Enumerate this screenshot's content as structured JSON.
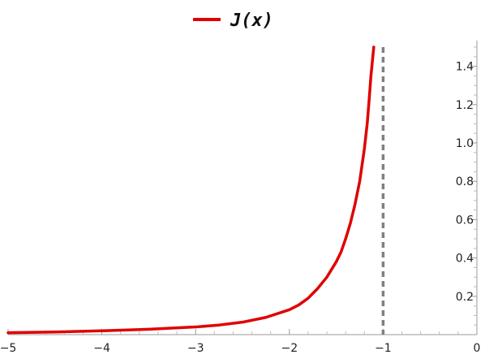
{
  "chart_data": {
    "type": "line",
    "title": "",
    "xlabel": "",
    "ylabel": "",
    "xlim": [
      -5,
      0
    ],
    "ylim": [
      0,
      1.5
    ],
    "x_ticks": [
      -5,
      -4,
      -3,
      -2,
      -1,
      0
    ],
    "x_tick_labels": [
      "−5",
      "−4",
      "−3",
      "−2",
      "−1",
      "0"
    ],
    "y_ticks": [
      0.2,
      0.4,
      0.6,
      0.8,
      1.0,
      1.2,
      1.4
    ],
    "y_tick_labels": [
      "0.2",
      "0.4",
      "0.6",
      "0.8",
      "1.0",
      "1.2",
      "1.4"
    ],
    "grid": false,
    "legend_position": "top-center",
    "series": [
      {
        "name": "J(x)",
        "color": "#e00000",
        "x": [
          -5,
          -4.5,
          -4,
          -3.5,
          -3,
          -2.75,
          -2.5,
          -2.25,
          -2,
          -1.9,
          -1.8,
          -1.7,
          -1.6,
          -1.5,
          -1.45,
          -1.4,
          -1.35,
          -1.3,
          -1.25,
          -1.2,
          -1.17,
          -1.15,
          -1.13,
          -1.1
        ],
        "y": [
          0.01,
          0.014,
          0.02,
          0.028,
          0.04,
          0.05,
          0.065,
          0.09,
          0.13,
          0.155,
          0.19,
          0.24,
          0.3,
          0.38,
          0.43,
          0.5,
          0.58,
          0.68,
          0.8,
          0.97,
          1.1,
          1.22,
          1.35,
          1.5
        ]
      }
    ],
    "annotations": [
      {
        "type": "vertical-dashed-line",
        "x": -1,
        "color": "#808080"
      }
    ]
  }
}
